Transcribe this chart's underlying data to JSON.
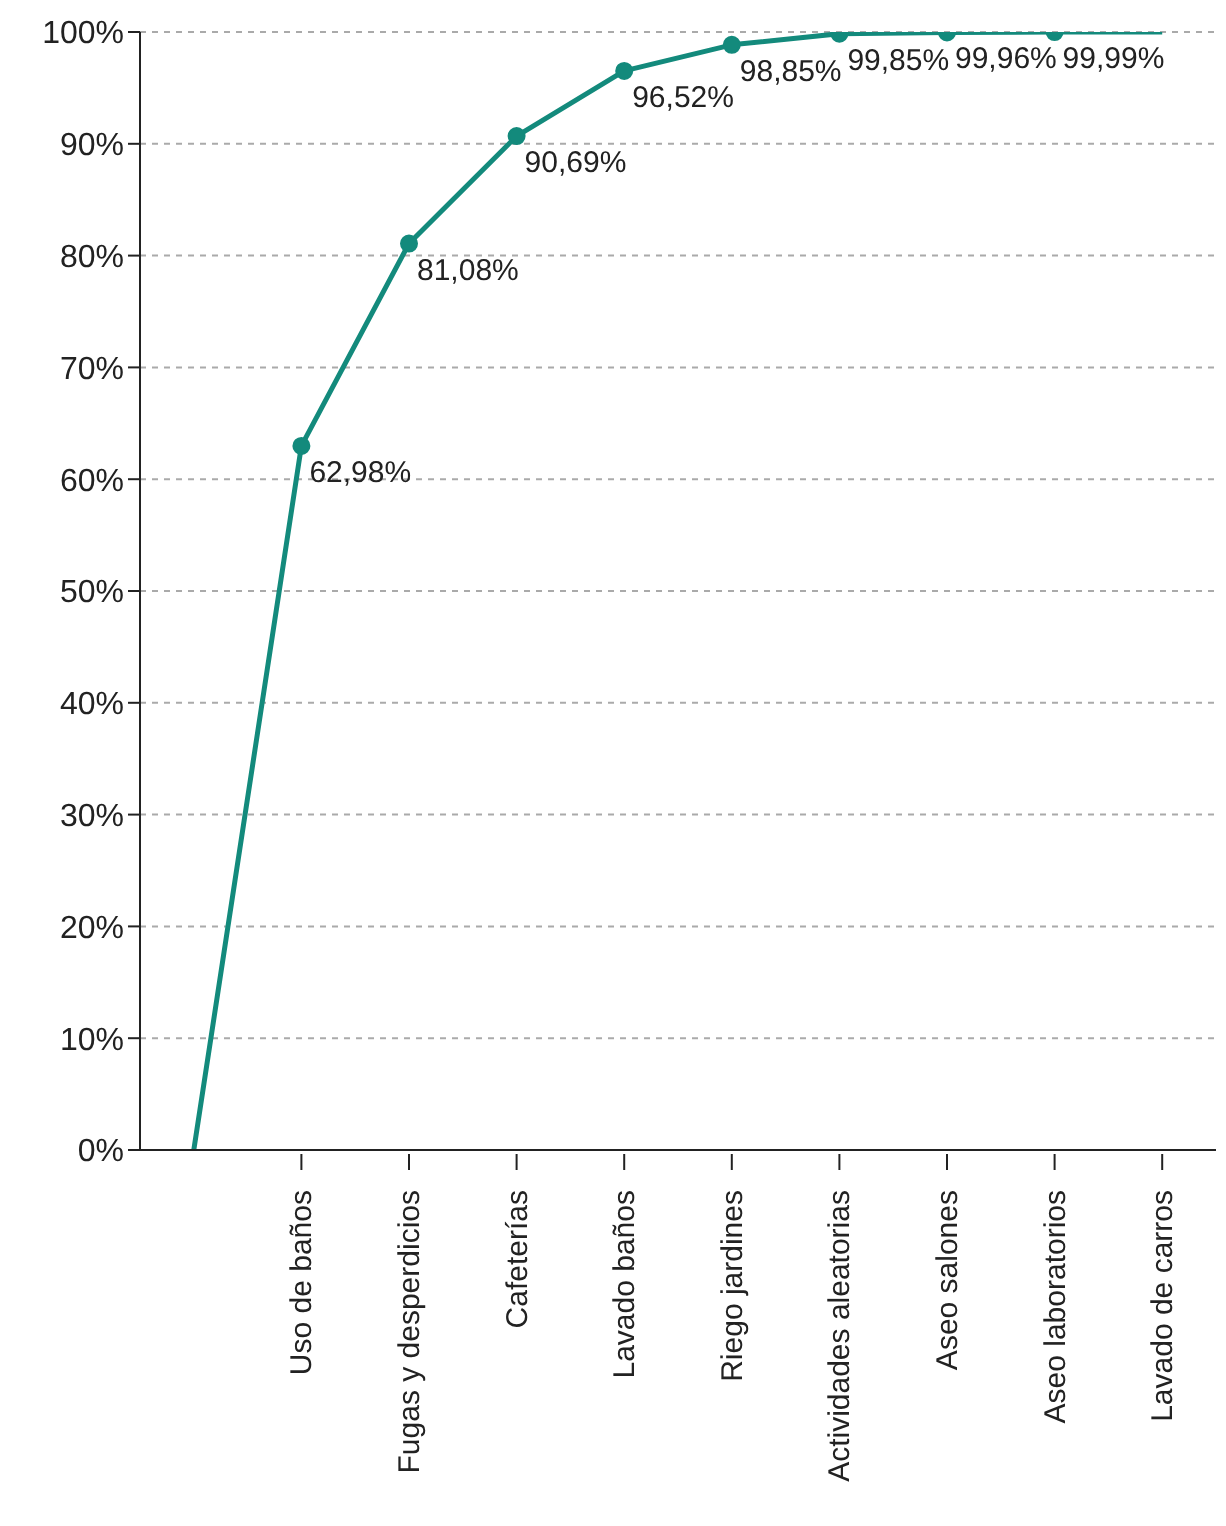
{
  "chart_data": {
    "type": "line",
    "categories": [
      null,
      "Uso de baños",
      "Fugas y desperdicios",
      "Cafeterías",
      "Lavado baños",
      "Riego jardines",
      "Actividades aleatorias",
      "Aseo salones",
      "Aseo laboratorios",
      "Lavado de carros"
    ],
    "series": [
      {
        "color": "#138a7c",
        "values": [
          0,
          62.98,
          81.08,
          90.69,
          96.52,
          98.85,
          99.85,
          99.96,
          99.99,
          100
        ],
        "value_labels": [
          null,
          "62,98%",
          "81,08%",
          "90,69%",
          "96,52%",
          "98,85%",
          "99,85%",
          "99,96%",
          "99,99%",
          null
        ]
      }
    ],
    "ylim": [
      0,
      100
    ],
    "yticks": [
      {
        "value": 0,
        "label": "0%"
      },
      {
        "value": 10,
        "label": "10%"
      },
      {
        "value": 20,
        "label": "20%"
      },
      {
        "value": 30,
        "label": "30%"
      },
      {
        "value": 40,
        "label": "40%"
      },
      {
        "value": 50,
        "label": "50%"
      },
      {
        "value": 60,
        "label": "60%"
      },
      {
        "value": 70,
        "label": "70%"
      },
      {
        "value": 80,
        "label": "80%"
      },
      {
        "value": 90,
        "label": "90%"
      },
      {
        "value": 100,
        "label": "100%"
      }
    ],
    "grid": "y",
    "marker": "circle",
    "line_style": "solid"
  }
}
